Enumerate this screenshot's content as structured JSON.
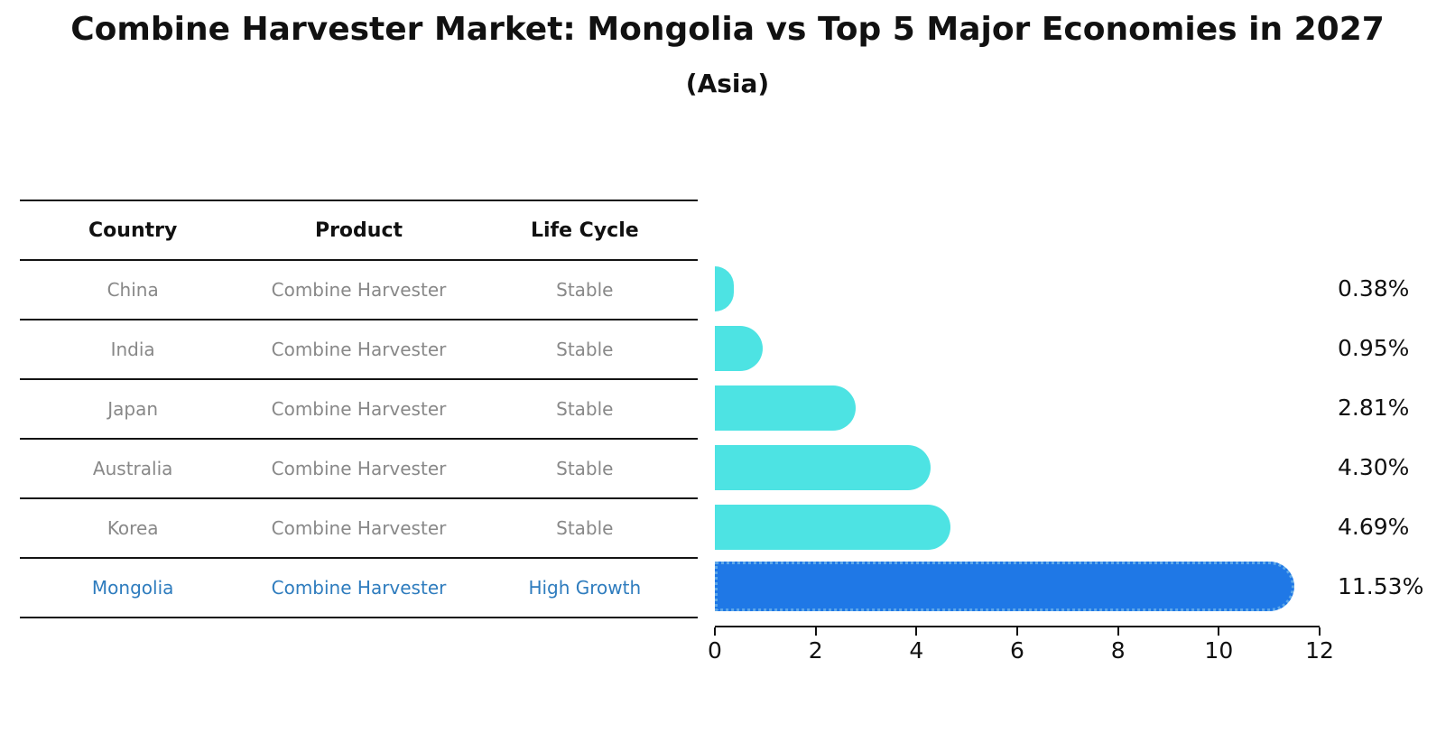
{
  "title": "Combine Harvester Market: Mongolia vs Top 5 Major Economies in 2027",
  "subtitle": "(Asia)",
  "table": {
    "headers": [
      "Country",
      "Product",
      "Life Cycle"
    ],
    "rows": [
      {
        "country": "China",
        "product": "Combine Harvester",
        "life_cycle": "Stable"
      },
      {
        "country": "India",
        "product": "Combine Harvester",
        "life_cycle": "Stable"
      },
      {
        "country": "Japan",
        "product": "Combine Harvester",
        "life_cycle": "Stable"
      },
      {
        "country": "Australia",
        "product": "Combine Harvester",
        "life_cycle": "Stable"
      },
      {
        "country": "Korea",
        "product": "Combine Harvester",
        "life_cycle": "Stable"
      },
      {
        "country": "Mongolia",
        "product": "Combine Harvester",
        "life_cycle": "High Growth"
      }
    ],
    "highlight_row": "Mongolia"
  },
  "chart_data": {
    "type": "bar",
    "orientation": "horizontal",
    "title": "Combine Harvester Market: Mongolia vs Top 5 Major Economies in 2027",
    "subtitle": "(Asia)",
    "categories": [
      "China",
      "India",
      "Japan",
      "Australia",
      "Korea",
      "Mongolia"
    ],
    "values": [
      0.38,
      0.95,
      2.81,
      4.3,
      4.69,
      11.53
    ],
    "value_labels": [
      "0.38%",
      "0.95%",
      "2.81%",
      "4.30%",
      "4.69%",
      "11.53%"
    ],
    "xlim": [
      0,
      12
    ],
    "x_ticks": [
      0,
      2,
      4,
      6,
      8,
      10,
      12
    ],
    "highlight_index": 5,
    "grid": false,
    "legend": false
  },
  "colors": {
    "bar": "#4de3e3",
    "highlight_bar": "#1f78e6",
    "highlight_bar_border": "#5fa8e8",
    "highlight_text": "#2e7cbe",
    "table_text": "#888888",
    "axis": "#111111"
  }
}
